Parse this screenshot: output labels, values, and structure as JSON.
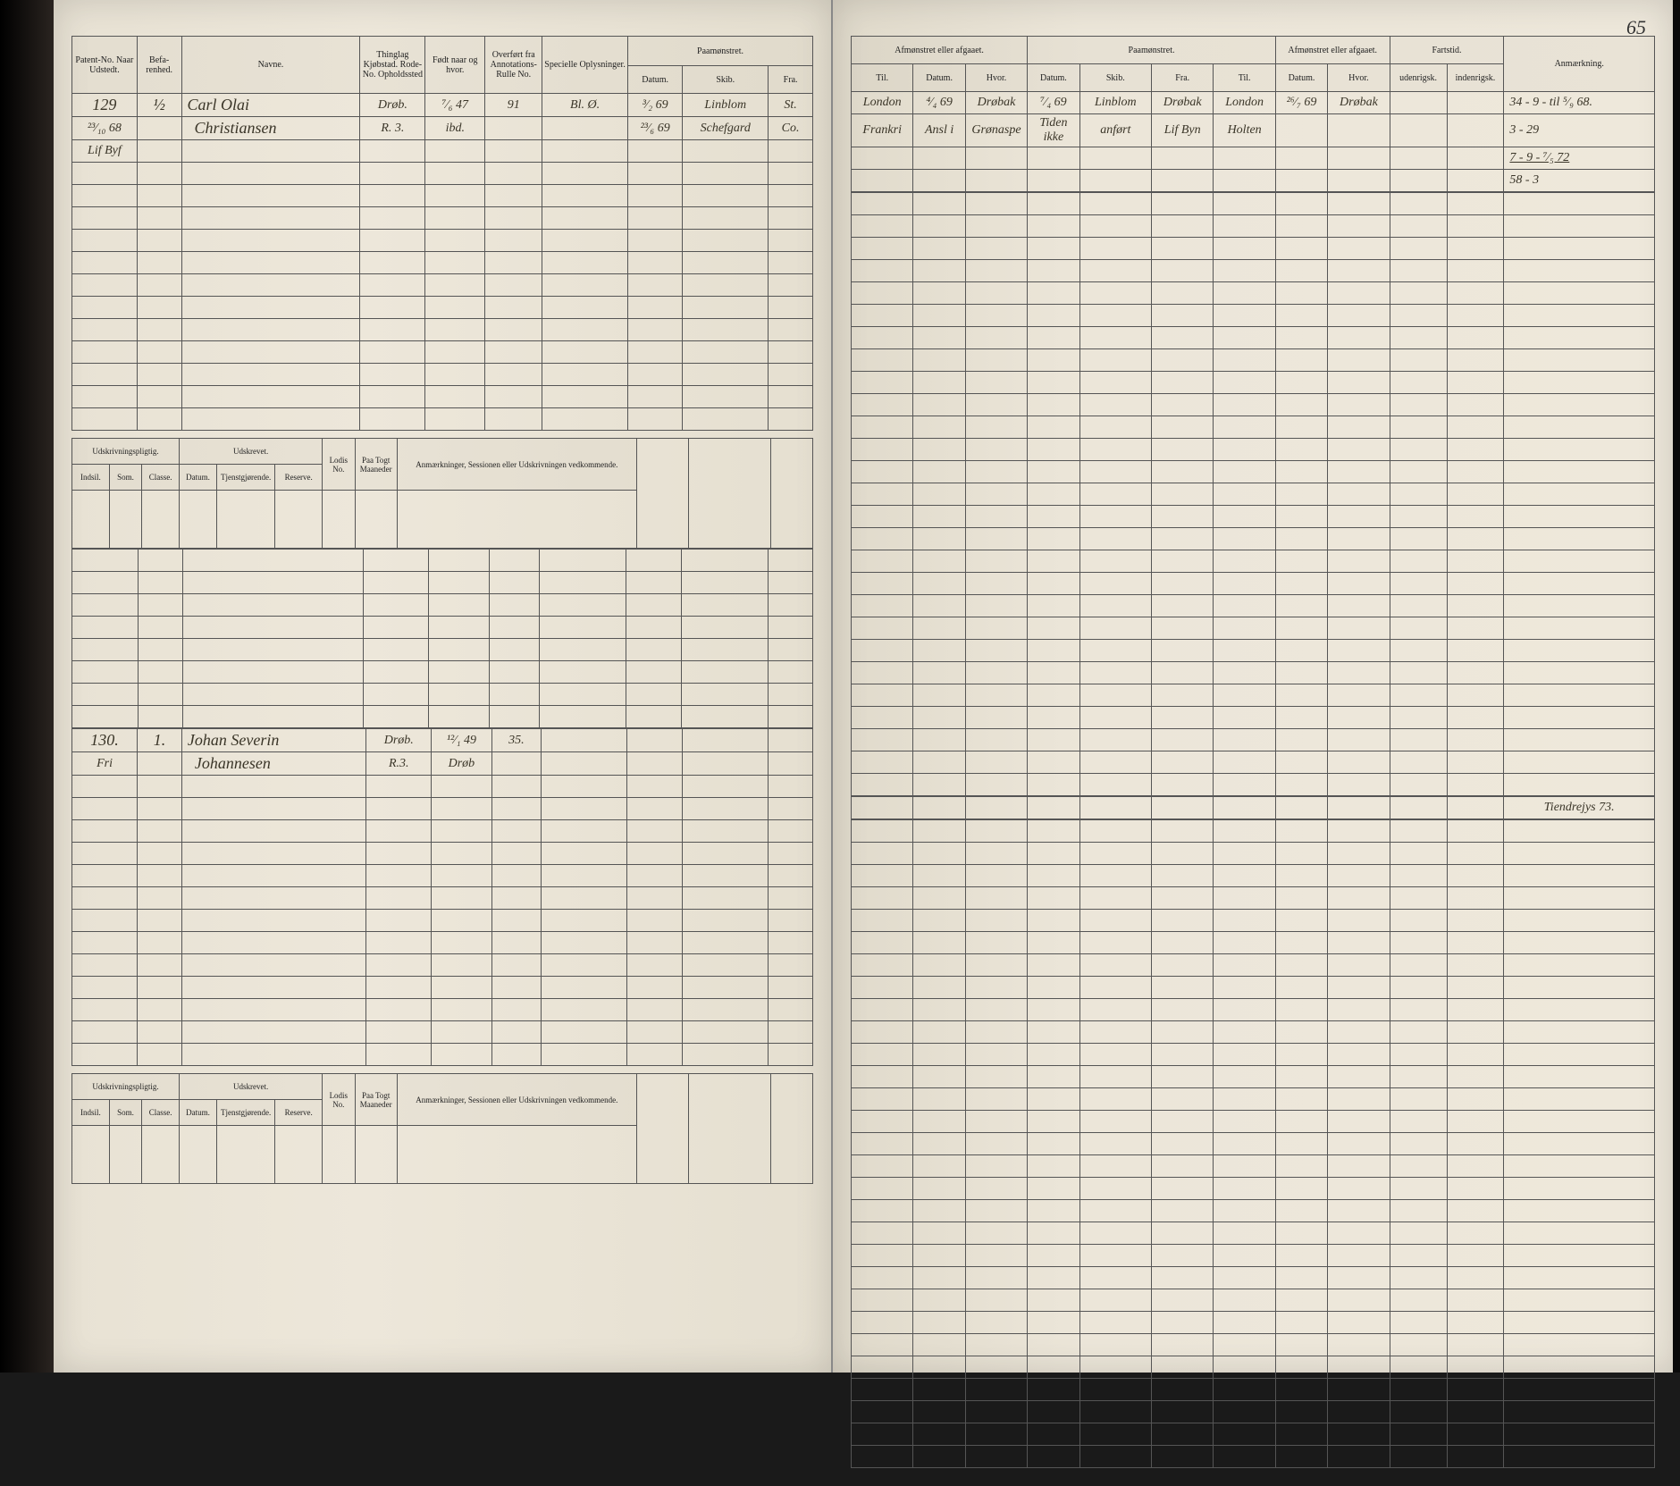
{
  "pageNumber": "65",
  "leftHeaders": {
    "group": [
      "Patent-No. Naar Udstedt.",
      "Befa-renhed.",
      "Navne.",
      "Thinglag Kjøbstad. Rode-No. Opholdssted",
      "Født naar og hvor.",
      "Overført fra Annotations-Rulle No.",
      "Specielle Oplysninger.",
      "Paamønstret."
    ],
    "sub": [
      "Datum.",
      "Skib.",
      "Fra."
    ]
  },
  "leftRecord1": {
    "patentNo": "129",
    "befar": "½",
    "navn1": "Carl Olai",
    "navn2": "Christiansen",
    "sted": "Drøb.",
    "sted2": "R. 3.",
    "fodt1": "⁷⁄₆ 47",
    "fodt2": "ibd.",
    "rulle": "91",
    "opl": "Bl. Ø.",
    "date": "²³⁄₁₀ 68",
    "sig": "Lif Byf",
    "rows": [
      {
        "d": "³⁄₂ 69",
        "s": "Linblom",
        "f": "St."
      },
      {
        "d": "²³⁄₆ 69",
        "s": "Schefgard",
        "f": "Co."
      }
    ]
  },
  "leftRecord2": {
    "patentNo": "130.",
    "befar": "1.",
    "navn1": "Johan Severin",
    "navn2": "Johannesen",
    "sted": "Drøb.",
    "sted2": "R.3.",
    "fodt1": "¹²⁄₁ 49",
    "fodt2": "Drøb",
    "rulle": "35.",
    "sig": "Fri"
  },
  "subHeaderLeft": {
    "title1": "Udskrivningspligtig.",
    "title2": "Udskrevet.",
    "cols": [
      "Indsil.",
      "Som.",
      "Classe.",
      "Datum.",
      "Tjenstgjørende.",
      "Reserve.",
      "Lodis No.",
      "Paa Togt Maaneder",
      "Anmærkninger,\nSessionen eller Udskrivningen vedkommende."
    ]
  },
  "rightHeaders": {
    "group": [
      "Afmønstret eller afgaaet.",
      "Paamønstret.",
      "Afmønstret eller afgaaet.",
      "Fartstid.",
      "Anmærkning."
    ],
    "sub": [
      "Til.",
      "Datum.",
      "Hvor.",
      "Datum.",
      "Skib.",
      "Fra.",
      "Til.",
      "Datum.",
      "Hvor.",
      "udenrigsk.",
      "indenrigsk."
    ]
  },
  "rightRows1": [
    {
      "c": [
        "London",
        "⁴⁄₄ 69",
        "Drøbak",
        "⁷⁄₄ 69",
        "Linblom",
        "Drøbak",
        "London",
        "²⁶⁄₇ 69",
        "Drøbak",
        "",
        "",
        ""
      ]
    },
    {
      "c": [
        "Frankri",
        "Ansl i",
        "Grønaspe",
        "Tiden ikke",
        "anført",
        "Lif Byn",
        "Holten",
        "",
        "",
        "",
        "",
        ""
      ]
    }
  ],
  "rightAnm1": [
    "34 - 9 -  til ⁵⁄₉ 68.",
    "3 - 29",
    "7 - 9 -  ⁷⁄₅ 72",
    "58 - 3"
  ],
  "rightAnm2": "Tiendrejys 73.",
  "colors": {
    "paper": "#ebe5d8",
    "ink": "#2b2820",
    "line": "#555"
  }
}
